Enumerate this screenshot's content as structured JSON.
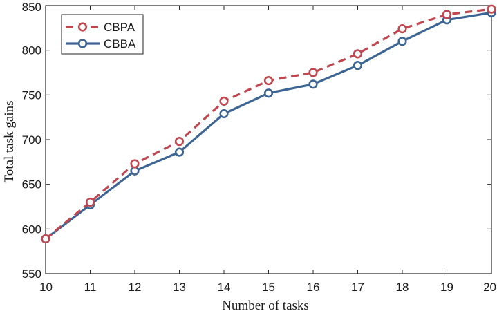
{
  "chart_data": {
    "type": "line",
    "title": "",
    "xlabel": "Number of tasks",
    "ylabel": "Total task gains",
    "x": [
      10,
      11,
      12,
      13,
      14,
      15,
      16,
      17,
      18,
      19,
      20
    ],
    "xlim": [
      10,
      20
    ],
    "ylim": [
      550,
      850
    ],
    "xticks": [
      "10",
      "11",
      "12",
      "13",
      "14",
      "15",
      "16",
      "17",
      "18",
      "19",
      "20"
    ],
    "yticks": [
      "550",
      "600",
      "650",
      "700",
      "750",
      "800",
      "850"
    ],
    "grid": false,
    "legend_position": "top-left",
    "series": [
      {
        "name": "CBPA",
        "color": "#c0474f",
        "line_style": "dashed",
        "marker": "circle",
        "values": [
          589,
          630,
          673,
          698,
          743,
          766,
          775,
          796,
          824,
          840,
          846
        ]
      },
      {
        "name": "CBBA",
        "color": "#3d6593",
        "line_style": "solid",
        "marker": "circle",
        "values": [
          589,
          627,
          665,
          686,
          729,
          752,
          762,
          783,
          810,
          834,
          842
        ]
      }
    ]
  }
}
